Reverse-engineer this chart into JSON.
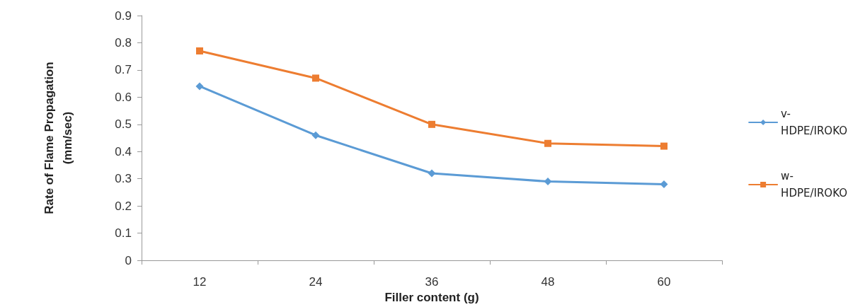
{
  "chart_data": {
    "type": "line",
    "xlabel": "Filler content (g)",
    "ylabel": "Rate of Flame Propagation (mm/sec)",
    "categories": [
      "12",
      "24",
      "36",
      "48",
      "60"
    ],
    "series": [
      {
        "name": "v-HDPE/IROKO",
        "color": "#5b9bd5",
        "marker": "diamond",
        "values": [
          0.64,
          0.46,
          0.32,
          0.29,
          0.28
        ]
      },
      {
        "name": "w-HDPE/IROKO",
        "color": "#ed7d31",
        "marker": "square",
        "values": [
          0.77,
          0.67,
          0.5,
          0.43,
          0.42
        ]
      }
    ],
    "ylim": [
      0,
      0.9
    ],
    "yticks": [
      0,
      0.1,
      0.2,
      0.3,
      0.4,
      0.5,
      0.6,
      0.7,
      0.8,
      0.9
    ],
    "grid": false,
    "legend": "right",
    "line_style": "solid"
  }
}
